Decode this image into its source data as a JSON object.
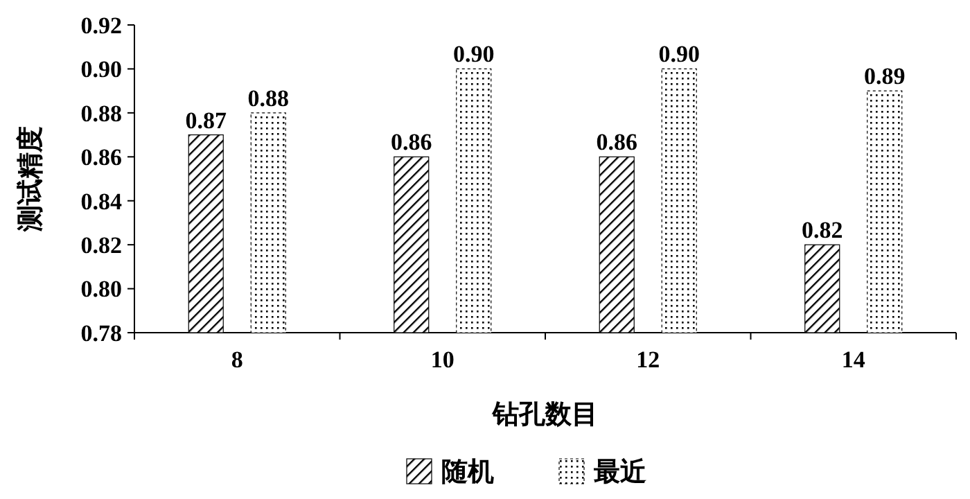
{
  "chart_data": {
    "type": "bar",
    "xlabel": "钻孔数目",
    "ylabel": "测试精度",
    "categories": [
      "8",
      "10",
      "12",
      "14"
    ],
    "series": [
      {
        "name": "随机",
        "color": "#000000",
        "values": [
          0.87,
          0.86,
          0.86,
          0.82
        ],
        "value_labels": [
          "0.87",
          "0.86",
          "0.86",
          "0.82"
        ]
      },
      {
        "name": "最近",
        "color": "#000000",
        "values": [
          0.88,
          0.9,
          0.9,
          0.89
        ],
        "value_labels": [
          "0.88",
          "0.90",
          "0.90",
          "0.89"
        ]
      }
    ],
    "ylim": [
      0.78,
      0.92
    ],
    "yticks": [
      {
        "value": 0.78,
        "label": "0.78"
      },
      {
        "value": 0.8,
        "label": "0.80"
      },
      {
        "value": 0.82,
        "label": "0.82"
      },
      {
        "value": 0.84,
        "label": "0.84"
      },
      {
        "value": 0.86,
        "label": "0.86"
      },
      {
        "value": 0.88,
        "label": "0.88"
      },
      {
        "value": 0.9,
        "label": "0.90"
      },
      {
        "value": 0.92,
        "label": "0.92"
      }
    ],
    "legend": "bottom"
  }
}
